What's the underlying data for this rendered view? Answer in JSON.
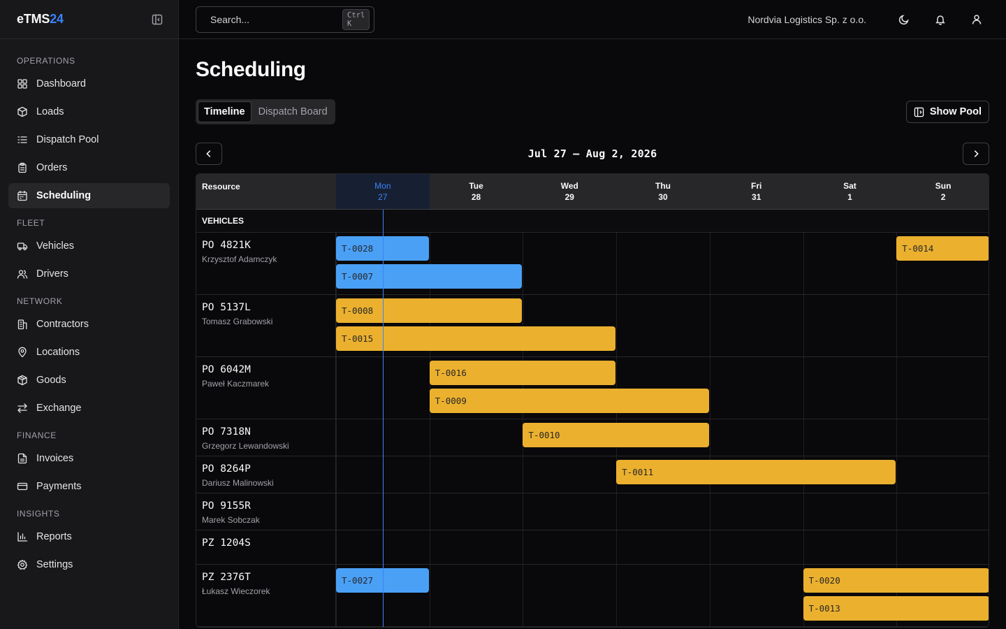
{
  "brand": {
    "name_main": "eTMS",
    "name_accent": "24"
  },
  "sidebar": {
    "sections": [
      {
        "title": "OPERATIONS",
        "items": [
          {
            "label": "Dashboard",
            "icon": "dashboard-icon"
          },
          {
            "label": "Loads",
            "icon": "package-icon"
          },
          {
            "label": "Dispatch Pool",
            "icon": "list-icon"
          },
          {
            "label": "Orders",
            "icon": "clipboard-icon"
          },
          {
            "label": "Scheduling",
            "icon": "calendar-icon",
            "active": true
          }
        ]
      },
      {
        "title": "FLEET",
        "items": [
          {
            "label": "Vehicles",
            "icon": "truck-icon"
          },
          {
            "label": "Drivers",
            "icon": "users-icon"
          }
        ]
      },
      {
        "title": "NETWORK",
        "items": [
          {
            "label": "Contractors",
            "icon": "building-icon"
          },
          {
            "label": "Locations",
            "icon": "map-pin-icon"
          },
          {
            "label": "Goods",
            "icon": "box-icon"
          },
          {
            "label": "Exchange",
            "icon": "arrows-icon"
          }
        ]
      },
      {
        "title": "FINANCE",
        "items": [
          {
            "label": "Invoices",
            "icon": "file-icon"
          },
          {
            "label": "Payments",
            "icon": "credit-card-icon"
          }
        ]
      },
      {
        "title": "INSIGHTS",
        "items": [
          {
            "label": "Reports",
            "icon": "bar-chart-icon"
          },
          {
            "label": "Settings",
            "icon": "gear-icon"
          }
        ]
      }
    ]
  },
  "header": {
    "search_placeholder": "Search...",
    "search_shortcut": "Ctrl K",
    "company": "Nordvia Logistics Sp. z o.o."
  },
  "page": {
    "title": "Scheduling",
    "tabs": [
      "Timeline",
      "Dispatch Board"
    ],
    "active_tab": "Timeline",
    "pool_button": "Show Pool",
    "date_range": "Jul 27 – Aug 2, 2026"
  },
  "grid": {
    "resource_header": "Resource",
    "group_label": "VEHICLES",
    "days": [
      {
        "name": "Mon",
        "num": "27",
        "today": true
      },
      {
        "name": "Tue",
        "num": "28"
      },
      {
        "name": "Wed",
        "num": "29"
      },
      {
        "name": "Thu",
        "num": "30"
      },
      {
        "name": "Fri",
        "num": "31"
      },
      {
        "name": "Sat",
        "num": "1"
      },
      {
        "name": "Sun",
        "num": "2"
      }
    ],
    "rows": [
      {
        "plate": "PO 4821K",
        "driver": "Krzysztof Adamczyk",
        "lanes": 2,
        "bars": [
          {
            "id": "T-0028",
            "color": "blue",
            "start": 0,
            "days": 1,
            "lane": 0
          },
          {
            "id": "T-0014",
            "color": "yellow",
            "start": 6,
            "days": 1,
            "lane": 0
          },
          {
            "id": "T-0007",
            "color": "blue",
            "start": 0,
            "days": 2,
            "lane": 1
          }
        ]
      },
      {
        "plate": "PO 5137L",
        "driver": "Tomasz Grabowski",
        "lanes": 2,
        "bars": [
          {
            "id": "T-0008",
            "color": "yellow",
            "start": 0,
            "days": 2,
            "lane": 0
          },
          {
            "id": "T-0015",
            "color": "yellow",
            "start": 0,
            "days": 3,
            "lane": 1
          }
        ]
      },
      {
        "plate": "PO 6042M",
        "driver": "Paweł Kaczmarek",
        "lanes": 2,
        "bars": [
          {
            "id": "T-0016",
            "color": "yellow",
            "start": 1,
            "days": 2,
            "lane": 0
          },
          {
            "id": "T-0009",
            "color": "yellow",
            "start": 1,
            "days": 3,
            "lane": 1
          }
        ]
      },
      {
        "plate": "PO 7318N",
        "driver": "Grzegorz Lewandowski",
        "lanes": 1,
        "bars": [
          {
            "id": "T-0010",
            "color": "yellow",
            "start": 2,
            "days": 2,
            "lane": 0
          }
        ]
      },
      {
        "plate": "PO 8264P",
        "driver": "Dariusz Malinowski",
        "lanes": 1,
        "bars": [
          {
            "id": "T-0011",
            "color": "yellow",
            "start": 3,
            "days": 3,
            "lane": 0
          }
        ]
      },
      {
        "plate": "PO 9155R",
        "driver": "Marek Sobczak",
        "lanes": 1,
        "bars": []
      },
      {
        "plate": "PZ 1204S",
        "driver": "",
        "lanes": 1,
        "bars": []
      },
      {
        "plate": "PZ 2376T",
        "driver": "Łukasz Wieczorek",
        "lanes": 2,
        "bars": [
          {
            "id": "T-0027",
            "color": "blue",
            "start": 0,
            "days": 1,
            "lane": 0
          },
          {
            "id": "T-0020",
            "color": "yellow",
            "start": 5,
            "days": 2,
            "lane": 0
          },
          {
            "id": "T-0013",
            "color": "yellow",
            "start": 5,
            "days": 2,
            "lane": 1
          }
        ]
      }
    ]
  }
}
